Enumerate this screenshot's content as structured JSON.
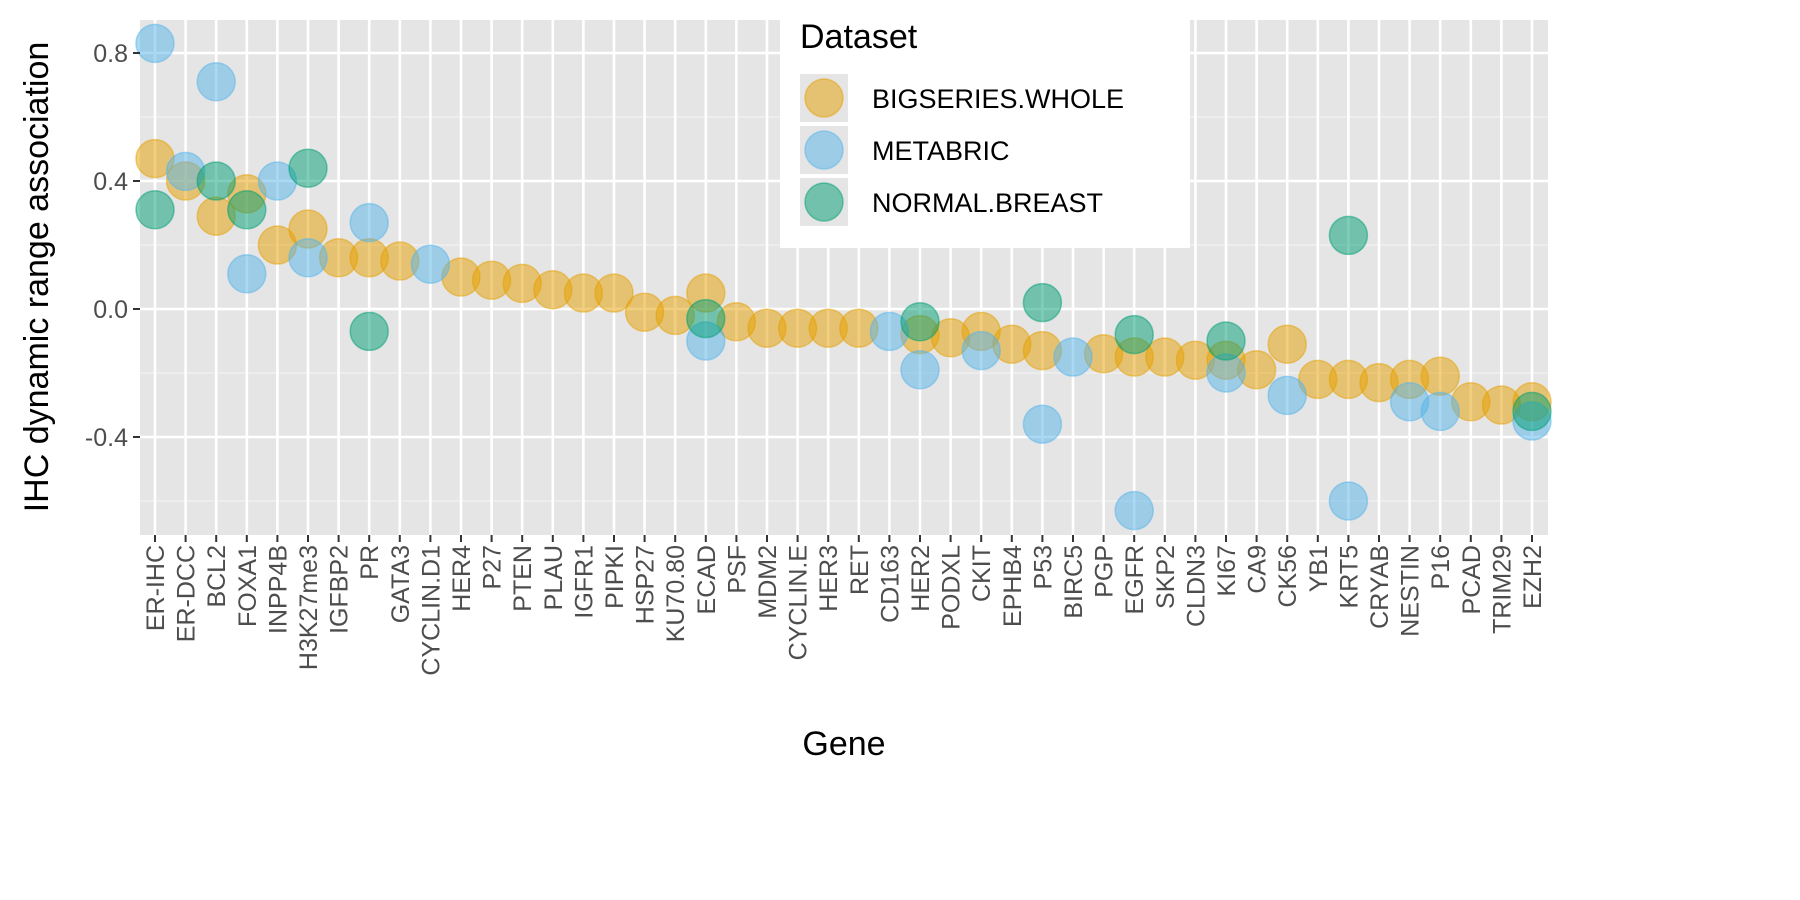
{
  "chart_data": {
    "type": "scatter",
    "xlabel": "Gene",
    "ylabel": "IHC dynamic range association",
    "ylim": [
      -0.7,
      0.9
    ],
    "yticks": [
      -0.4,
      0.0,
      0.4,
      0.8
    ],
    "ytick_labels": [
      "-0.4",
      "0.0",
      "0.4",
      "0.8"
    ],
    "grid": true,
    "legend": {
      "title": "Dataset",
      "position": "top-right"
    },
    "categories": [
      "ER-IHC",
      "ER-DCC",
      "BCL2",
      "FOXA1",
      "INPP4B",
      "H3K27me3",
      "IGFBP2",
      "PR",
      "GATA3",
      "CYCLIN.D1",
      "HER4",
      "P27",
      "PTEN",
      "PLAU",
      "IGFR1",
      "PIPKI",
      "HSP27",
      "KU70.80",
      "ECAD",
      "PSF",
      "MDM2",
      "CYCLIN.E",
      "HER3",
      "RET",
      "CD163",
      "HER2",
      "PODXL",
      "CKIT",
      "EPHB4",
      "P53",
      "BIRC5",
      "PGP",
      "EGFR",
      "SKP2",
      "CLDN3",
      "KI67",
      "CA9",
      "CK56",
      "YB1",
      "KRT5",
      "CRYAB",
      "NESTIN",
      "P16",
      "PCAD",
      "TRIM29",
      "EZH2"
    ],
    "series": [
      {
        "name": "BIGSERIES.WHOLE",
        "color": "#E69F00",
        "points": [
          [
            "ER-IHC",
            0.47
          ],
          [
            "ER-DCC",
            0.4
          ],
          [
            "BCL2",
            0.29
          ],
          [
            "FOXA1",
            0.36
          ],
          [
            "INPP4B",
            0.2
          ],
          [
            "H3K27me3",
            0.25
          ],
          [
            "IGFBP2",
            0.16
          ],
          [
            "PR",
            0.16
          ],
          [
            "GATA3",
            0.15
          ],
          [
            "HER4",
            0.1
          ],
          [
            "P27",
            0.09
          ],
          [
            "PTEN",
            0.08
          ],
          [
            "PLAU",
            0.06
          ],
          [
            "IGFR1",
            0.05
          ],
          [
            "PIPKI",
            0.05
          ],
          [
            "HSP27",
            -0.01
          ],
          [
            "KU70.80",
            -0.02
          ],
          [
            "ECAD",
            0.05
          ],
          [
            "PSF",
            -0.04
          ],
          [
            "MDM2",
            -0.06
          ],
          [
            "CYCLIN.E",
            -0.06
          ],
          [
            "HER3",
            -0.06
          ],
          [
            "RET",
            -0.06
          ],
          [
            "HER2",
            -0.08
          ],
          [
            "PODXL",
            -0.09
          ],
          [
            "CKIT",
            -0.07
          ],
          [
            "EPHB4",
            -0.11
          ],
          [
            "P53",
            -0.13
          ],
          [
            "PGP",
            -0.14
          ],
          [
            "EGFR",
            -0.15
          ],
          [
            "SKP2",
            -0.15
          ],
          [
            "CLDN3",
            -0.16
          ],
          [
            "KI67",
            -0.16
          ],
          [
            "CA9",
            -0.19
          ],
          [
            "CK56",
            -0.11
          ],
          [
            "YB1",
            -0.22
          ],
          [
            "KRT5",
            -0.22
          ],
          [
            "CRYAB",
            -0.23
          ],
          [
            "NESTIN",
            -0.22
          ],
          [
            "P16",
            -0.21
          ],
          [
            "PCAD",
            -0.29
          ],
          [
            "TRIM29",
            -0.3
          ],
          [
            "EZH2",
            -0.29
          ]
        ]
      },
      {
        "name": "METABRIC",
        "color": "#56B4E9",
        "points": [
          [
            "ER-IHC",
            0.83
          ],
          [
            "ER-DCC",
            0.43
          ],
          [
            "BCL2",
            0.71
          ],
          [
            "FOXA1",
            0.11
          ],
          [
            "INPP4B",
            0.4
          ],
          [
            "H3K27me3",
            0.16
          ],
          [
            "PR",
            0.27
          ],
          [
            "CYCLIN.D1",
            0.14
          ],
          [
            "ECAD",
            -0.1
          ],
          [
            "CD163",
            -0.07
          ],
          [
            "HER2",
            -0.19
          ],
          [
            "CKIT",
            -0.13
          ],
          [
            "P53",
            -0.36
          ],
          [
            "BIRC5",
            -0.15
          ],
          [
            "EGFR",
            -0.63
          ],
          [
            "KI67",
            -0.2
          ],
          [
            "CK56",
            -0.27
          ],
          [
            "KRT5",
            -0.6
          ],
          [
            "NESTIN",
            -0.29
          ],
          [
            "P16",
            -0.32
          ],
          [
            "EZH2",
            -0.35
          ]
        ]
      },
      {
        "name": "NORMAL.BREAST",
        "color": "#009E73",
        "points": [
          [
            "ER-IHC",
            0.31
          ],
          [
            "BCL2",
            0.4
          ],
          [
            "FOXA1",
            0.31
          ],
          [
            "H3K27me3",
            0.44
          ],
          [
            "PR",
            -0.07
          ],
          [
            "ECAD",
            -0.03
          ],
          [
            "HER2",
            -0.04
          ],
          [
            "P53",
            0.02
          ],
          [
            "EGFR",
            -0.08
          ],
          [
            "KI67",
            -0.1
          ],
          [
            "KRT5",
            0.23
          ],
          [
            "EZH2",
            -0.32
          ]
        ]
      }
    ]
  }
}
